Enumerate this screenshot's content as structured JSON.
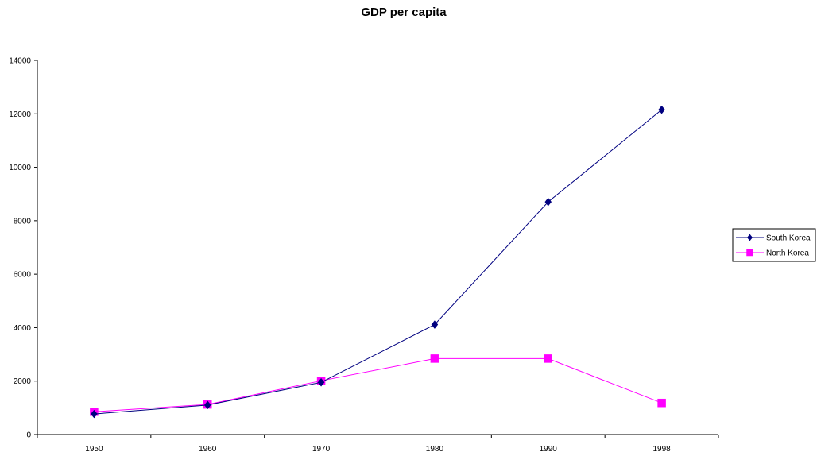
{
  "chart_data": {
    "type": "line",
    "title": "GDP per capita",
    "xlabel": "",
    "ylabel": "",
    "categories": [
      "1950",
      "1960",
      "1970",
      "1980",
      "1990",
      "1998"
    ],
    "ylim": [
      0,
      14000
    ],
    "yticks": [
      "0",
      "2000",
      "4000",
      "6000",
      "8000",
      "10000",
      "12000",
      "14000"
    ],
    "grid": false,
    "legend_position": "right",
    "series": [
      {
        "name": "South Korea",
        "values": [
          770,
          1105,
          1954,
          4114,
          8704,
          12152
        ],
        "color": "#000080",
        "marker": "diamond"
      },
      {
        "name": "North Korea",
        "values": [
          854,
          1126,
          2012,
          2841,
          2841,
          1183
        ],
        "color": "#ff00ff",
        "marker": "square"
      }
    ]
  }
}
